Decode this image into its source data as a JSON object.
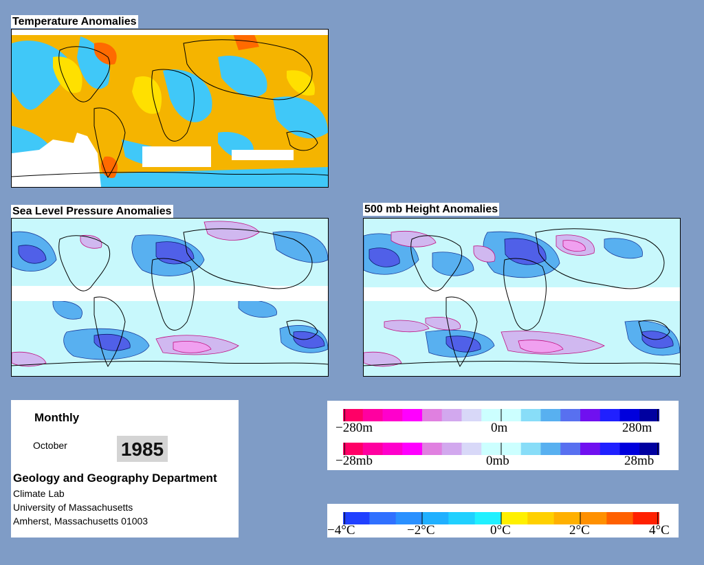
{
  "maps": {
    "temperature": {
      "title": "Temperature Anomalies"
    },
    "slp": {
      "title": "Sea Level Pressure Anomalies"
    },
    "height500": {
      "title": "500 mb Height Anomalies"
    }
  },
  "info": {
    "period": "Monthly",
    "month": "October",
    "year": "1985",
    "department": "Geology and Geography Department",
    "lines": [
      "Climate Lab",
      "University of Massachusetts",
      "Amherst, Massachusetts 01003"
    ]
  },
  "scales": {
    "height": {
      "unit": "m",
      "labels": [
        "−280m",
        "0m",
        "280m"
      ],
      "range": [
        -280,
        280
      ]
    },
    "pressure": {
      "unit": "mb",
      "labels": [
        "−28mb",
        "0mb",
        "28mb"
      ],
      "range": [
        -28,
        28
      ]
    },
    "temperature": {
      "unit": "°C",
      "labels": [
        "−4°C",
        "−2°C",
        "0°C",
        "2°C",
        "4°C"
      ],
      "range": [
        -4,
        4
      ]
    }
  },
  "colors": {
    "background": "#7f9cc6",
    "anomaly_scale": [
      "#ff0066",
      "#ff00a0",
      "#ff00cc",
      "#ff00ff",
      "#e080e0",
      "#d2a8ee",
      "#d8d8f8",
      "#ccffff",
      "#ccffff",
      "#88ddf8",
      "#58b0f0",
      "#5870f0",
      "#7010f0",
      "#2020ff",
      "#0000dd",
      "#0000a0"
    ],
    "temperature_scale": [
      "#2040ff",
      "#3070ff",
      "#2a90ff",
      "#20b0ff",
      "#20d0ff",
      "#20f0ff",
      "#fff000",
      "#ffd000",
      "#ffb000",
      "#ff9000",
      "#ff6000",
      "#ff2000"
    ],
    "temp_warm": "#f5b400",
    "temp_warm_light": "#ffe000",
    "temp_cool": "#40c8f8",
    "temp_hot": "#ff6a00",
    "anom_neutral": "#c8f8fc",
    "anom_neg1": "#58b0f0",
    "anom_neg2": "#5060e8",
    "anom_pos1": "#d0b8f0",
    "anom_pos2": "#f0a0f0",
    "coast": "#000000"
  }
}
